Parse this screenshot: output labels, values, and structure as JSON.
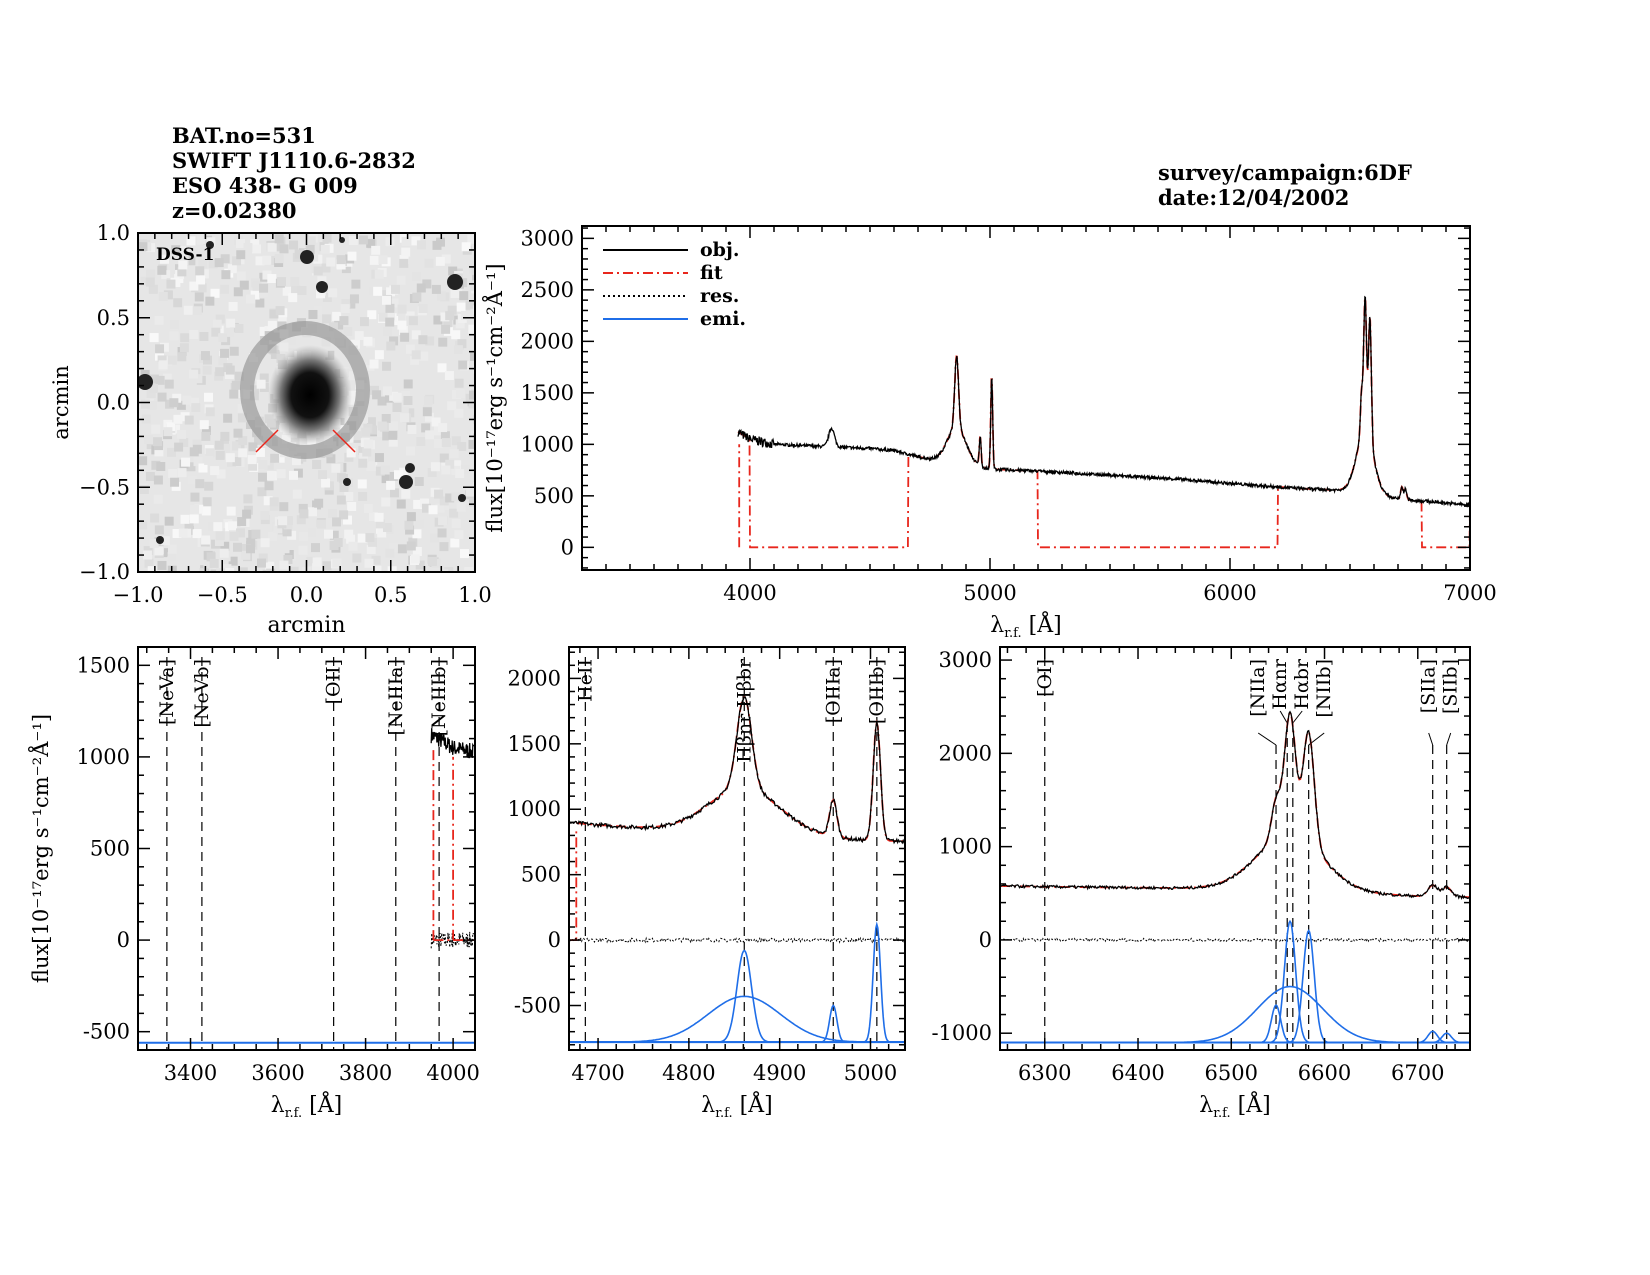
{
  "header": {
    "left": [
      "BAT.no=531",
      "SWIFT J1110.6-2832",
      "ESO 438-  G 009",
      "z=0.02380"
    ],
    "right": [
      "survey/campaign:6DF",
      "date:12/04/2002"
    ]
  },
  "colors": {
    "obj": "#000000",
    "fit": "#e8261c",
    "res": "#000000",
    "emi": "#1f6ee8",
    "red_label": "#e8261c"
  },
  "chart_data": [
    {
      "type": "image",
      "label": "DSS-1",
      "xlabel": "arcmin",
      "ylabel": "arcmin",
      "xlim": [
        -1.0,
        1.0
      ],
      "ylim": [
        -1.0,
        1.0
      ],
      "xticks": [
        "−1.0",
        "−0.5",
        "0.0",
        "0.5",
        "1.0"
      ],
      "yticks": [
        "−1.0",
        "−0.5",
        "0.0",
        "0.5",
        "1.0"
      ]
    },
    {
      "type": "line",
      "xlabel": "λ",
      "xlabel_sub": "r.f.",
      "xlabel_unit": " [Å]",
      "ylabel": "flux[10⁻¹⁷erg s⁻¹cm⁻²Å⁻¹]",
      "xlim": [
        3300,
        7000
      ],
      "ylim": [
        -220,
        3120
      ],
      "xticks": [
        4000,
        5000,
        6000,
        7000
      ],
      "yticks": [
        0,
        500,
        1000,
        1500,
        2000,
        2500,
        3000
      ],
      "legend": {
        "placement": "top-left",
        "entries": [
          {
            "name": "obj.",
            "style": "solid",
            "color": "#000000"
          },
          {
            "name": "fit",
            "style": "dash-dot",
            "color": "#e8261c"
          },
          {
            "name": "res.",
            "style": "dotted",
            "color": "#000000"
          },
          {
            "name": "emi.",
            "style": "solid",
            "color": "#1f6ee8"
          }
        ]
      },
      "continuum": [
        [
          3950,
          1120
        ],
        [
          4000,
          1050
        ],
        [
          4100,
          1000
        ],
        [
          4300,
          980
        ],
        [
          4500,
          960
        ],
        [
          4600,
          940
        ],
        [
          4700,
          880
        ],
        [
          4800,
          830
        ],
        [
          5000,
          760
        ],
        [
          5200,
          740
        ],
        [
          5500,
          700
        ],
        [
          5800,
          660
        ],
        [
          6000,
          620
        ],
        [
          6300,
          570
        ],
        [
          6500,
          550
        ],
        [
          6700,
          470
        ],
        [
          7000,
          410
        ]
      ],
      "lines": [
        {
          "wave": 4340,
          "peak": 180,
          "sigma": 12
        },
        {
          "wave": 4861,
          "peak": 700,
          "sigma": 8
        },
        {
          "wave": 4861,
          "peak": 350,
          "sigma": 40
        },
        {
          "wave": 4959,
          "peak": 280,
          "sigma": 4
        },
        {
          "wave": 5007,
          "peak": 900,
          "sigma": 4
        },
        {
          "wave": 6548,
          "peak": 400,
          "sigma": 5
        },
        {
          "wave": 6563,
          "peak": 1300,
          "sigma": 6
        },
        {
          "wave": 6563,
          "peak": 600,
          "sigma": 35
        },
        {
          "wave": 6583,
          "peak": 1200,
          "sigma": 6
        },
        {
          "wave": 6716,
          "peak": 120,
          "sigma": 5
        },
        {
          "wave": 6731,
          "peak": 100,
          "sigma": 5
        }
      ],
      "fit_zero_ranges": [
        [
          3300,
          3950
        ],
        [
          4000,
          4660
        ],
        [
          5200,
          6200
        ],
        [
          6800,
          7000
        ]
      ]
    },
    {
      "type": "line",
      "xlabel": "λ",
      "xlabel_sub": "r.f.",
      "xlabel_unit": " [Å]",
      "ylabel": "flux[10⁻¹⁷erg s⁻¹cm⁻²Å⁻¹]",
      "xlim": [
        3280,
        4050
      ],
      "ylim": [
        -600,
        1600
      ],
      "xticks": [
        3400,
        3600,
        3800,
        4000
      ],
      "yticks": [
        -500,
        0,
        500,
        1000,
        1500
      ],
      "emi_baseline": -560,
      "markers": [
        {
          "label": "[NeVa]",
          "wave": 3346,
          "color": "red"
        },
        {
          "label": "[NeVb]",
          "wave": 3426,
          "color": "red"
        },
        {
          "label": "[OII]",
          "wave": 3727,
          "color": "red"
        },
        {
          "label": "[NeIIIa]",
          "wave": 3869,
          "color": "red"
        },
        {
          "label": "[NeIIIb]",
          "wave": 3968,
          "color": "red"
        }
      ]
    },
    {
      "type": "line",
      "xlabel": "λ",
      "xlabel_sub": "r.f.",
      "xlabel_unit": " [Å]",
      "xlim": [
        4668,
        5038
      ],
      "ylim": [
        -840,
        2240
      ],
      "xticks": [
        4700,
        4800,
        4900,
        5000
      ],
      "yticks": [
        -500,
        0,
        500,
        1000,
        1500,
        2000
      ],
      "emi_baseline": -780,
      "markers": [
        {
          "label": "HeII",
          "wave": 4686,
          "color": "red"
        },
        {
          "label": "Hβnr Hβbr",
          "wave": 4861,
          "color": "black"
        },
        {
          "label": "[OIIIa]",
          "wave": 4959,
          "color": "black"
        },
        {
          "label": "[OIIIb]",
          "wave": 5007,
          "color": "black"
        }
      ]
    },
    {
      "type": "line",
      "xlabel": "λ",
      "xlabel_sub": "r.f.",
      "xlabel_unit": " [Å]",
      "xlim": [
        6252,
        6756
      ],
      "ylim": [
        -1180,
        3140
      ],
      "xticks": [
        6300,
        6400,
        6500,
        6600,
        6700
      ],
      "yticks": [
        -1000,
        0,
        1000,
        2000,
        3000
      ],
      "emi_baseline": -1100,
      "markers": [
        {
          "label": "[OI]",
          "wave": 6300,
          "color": "red"
        },
        {
          "label": "[NIIa]",
          "wave": 6548,
          "color": "black"
        },
        {
          "label": "Hαnr",
          "wave": 6560,
          "color": "black"
        },
        {
          "label": "Hαbr",
          "wave": 6566,
          "color": "black"
        },
        {
          "label": "[NIIb]",
          "wave": 6583,
          "color": "black"
        },
        {
          "label": "[SIIa]",
          "wave": 6716,
          "color": "black"
        },
        {
          "label": "[SIIb]",
          "wave": 6731,
          "color": "black"
        }
      ]
    }
  ]
}
